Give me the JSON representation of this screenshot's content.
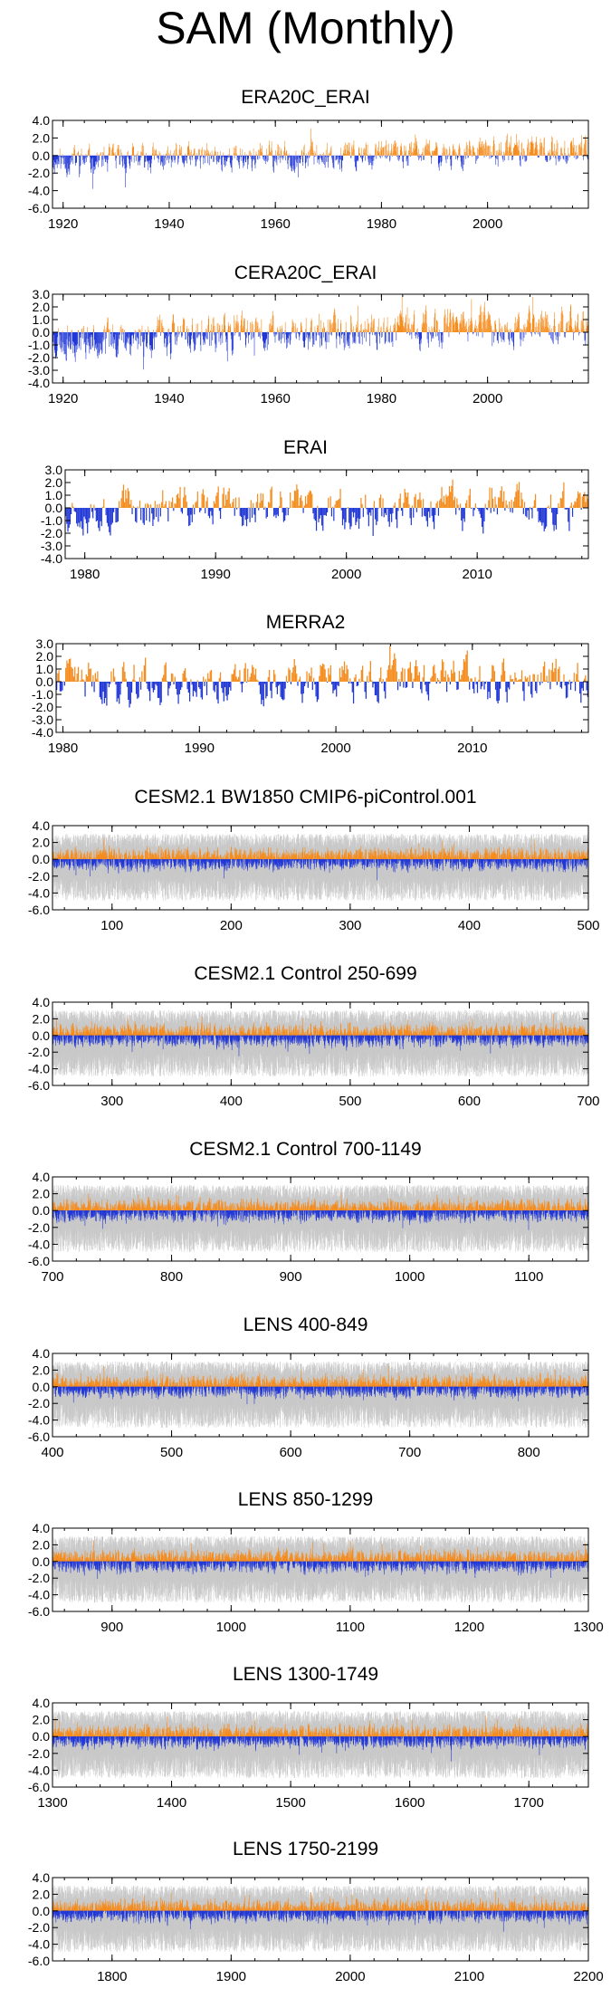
{
  "title": "SAM (Monthly)",
  "colors": {
    "positive": "#f58c1e",
    "negative": "#2238d6",
    "ensemble": "#c8c8c8",
    "axis": "#000000"
  },
  "chart_data": [
    {
      "type": "bar",
      "title": "ERA20C_ERAI",
      "xlim": [
        1918,
        2019
      ],
      "ylim": [
        -6,
        4
      ],
      "yticks": [
        "4.0",
        "2.0",
        "0.0",
        "-2.0",
        "-4.0",
        "-6.0"
      ],
      "xticks": [
        "1920",
        "1940",
        "1960",
        "1980",
        "2000"
      ],
      "ensemble": false,
      "amplitude": 1.2,
      "trend": 0.013,
      "trend_ref": 1968,
      "seed": 11
    },
    {
      "type": "bar",
      "title": "CERA20C_ERAI",
      "xlim": [
        1918,
        2019
      ],
      "ylim": [
        -4,
        3
      ],
      "yticks": [
        "3.0",
        "2.0",
        "1.0",
        "0.0",
        "-1.0",
        "-2.0",
        "-3.0",
        "-4.0"
      ],
      "xticks": [
        "1920",
        "1940",
        "1960",
        "1980",
        "2000"
      ],
      "ensemble": false,
      "amplitude": 1.1,
      "trend": 0.012,
      "trend_ref": 1968,
      "seed": 23
    },
    {
      "type": "bar",
      "title": "ERAI",
      "xlim": [
        1978.5,
        2018.5
      ],
      "ylim": [
        -4,
        3
      ],
      "yticks": [
        "3.0",
        "2.0",
        "1.0",
        "0.0",
        "-1.0",
        "-2.0",
        "-3.0",
        "-4.0"
      ],
      "xticks": [
        "1980",
        "1990",
        "2000",
        "2010"
      ],
      "ensemble": false,
      "amplitude": 1.3,
      "trend": 0,
      "trend_ref": 1998,
      "seed": 37
    },
    {
      "type": "bar",
      "title": "MERRA2",
      "xlim": [
        1979.5,
        2018.5
      ],
      "ylim": [
        -4,
        3
      ],
      "yticks": [
        "3.0",
        "2.0",
        "1.0",
        "0.0",
        "-1.0",
        "-2.0",
        "-3.0",
        "-4.0"
      ],
      "xticks": [
        "1980",
        "1990",
        "2000",
        "2010"
      ],
      "ensemble": false,
      "amplitude": 1.3,
      "trend": 0,
      "trend_ref": 1998,
      "seed": 41
    },
    {
      "type": "bar",
      "title": "CESM2.1 BW1850 CMIP6-piControl.001",
      "xlim": [
        50,
        500
      ],
      "ylim": [
        -6,
        4
      ],
      "yticks": [
        "4.0",
        "2.0",
        "0.0",
        "-2.0",
        "-4.0",
        "-6.0"
      ],
      "xticks": [
        "100",
        "200",
        "300",
        "400",
        "500"
      ],
      "ensemble": true,
      "amplitude": 0.9,
      "trend": 0,
      "trend_ref": 275,
      "seed": 53
    },
    {
      "type": "bar",
      "title": "CESM2.1 Control 250-699",
      "xlim": [
        250,
        700
      ],
      "ylim": [
        -6,
        4
      ],
      "yticks": [
        "4.0",
        "2.0",
        "0.0",
        "-2.0",
        "-4.0",
        "-6.0"
      ],
      "xticks": [
        "300",
        "400",
        "500",
        "600",
        "700"
      ],
      "ensemble": true,
      "amplitude": 0.9,
      "trend": 0,
      "trend_ref": 475,
      "seed": 61
    },
    {
      "type": "bar",
      "title": "CESM2.1 Control 700-1149",
      "xlim": [
        700,
        1150
      ],
      "ylim": [
        -6,
        4
      ],
      "yticks": [
        "4.0",
        "2.0",
        "0.0",
        "-2.0",
        "-4.0",
        "-6.0"
      ],
      "xticks": [
        "700",
        "800",
        "900",
        "1000",
        "1100"
      ],
      "ensemble": true,
      "amplitude": 0.9,
      "trend": 0,
      "trend_ref": 925,
      "seed": 71
    },
    {
      "type": "bar",
      "title": "LENS 400-849",
      "xlim": [
        400,
        850
      ],
      "ylim": [
        -6,
        4
      ],
      "yticks": [
        "4.0",
        "2.0",
        "0.0",
        "-2.0",
        "-4.0",
        "-6.0"
      ],
      "xticks": [
        "400",
        "500",
        "600",
        "700",
        "800"
      ],
      "ensemble": true,
      "amplitude": 0.9,
      "trend": 0,
      "trend_ref": 625,
      "seed": 83
    },
    {
      "type": "bar",
      "title": "LENS 850-1299",
      "xlim": [
        850,
        1300
      ],
      "ylim": [
        -6,
        4
      ],
      "yticks": [
        "4.0",
        "2.0",
        "0.0",
        "-2.0",
        "-4.0",
        "-6.0"
      ],
      "xticks": [
        "900",
        "1000",
        "1100",
        "1200",
        "1300"
      ],
      "ensemble": true,
      "amplitude": 0.9,
      "trend": 0,
      "trend_ref": 1075,
      "seed": 97
    },
    {
      "type": "bar",
      "title": "LENS 1300-1749",
      "xlim": [
        1300,
        1750
      ],
      "ylim": [
        -6,
        4
      ],
      "yticks": [
        "4.0",
        "2.0",
        "0.0",
        "-2.0",
        "-4.0",
        "-6.0"
      ],
      "xticks": [
        "1300",
        "1400",
        "1500",
        "1600",
        "1700"
      ],
      "ensemble": true,
      "amplitude": 0.9,
      "trend": 0,
      "trend_ref": 1525,
      "seed": 103
    },
    {
      "type": "bar",
      "title": "LENS 1750-2199",
      "xlim": [
        1750,
        2200
      ],
      "ylim": [
        -6,
        4
      ],
      "yticks": [
        "4.0",
        "2.0",
        "0.0",
        "-2.0",
        "-4.0",
        "-6.0"
      ],
      "xticks": [
        "1800",
        "1900",
        "2000",
        "2100",
        "2200"
      ],
      "ensemble": true,
      "amplitude": 0.9,
      "trend": 0,
      "trend_ref": 1975,
      "seed": 113
    }
  ]
}
